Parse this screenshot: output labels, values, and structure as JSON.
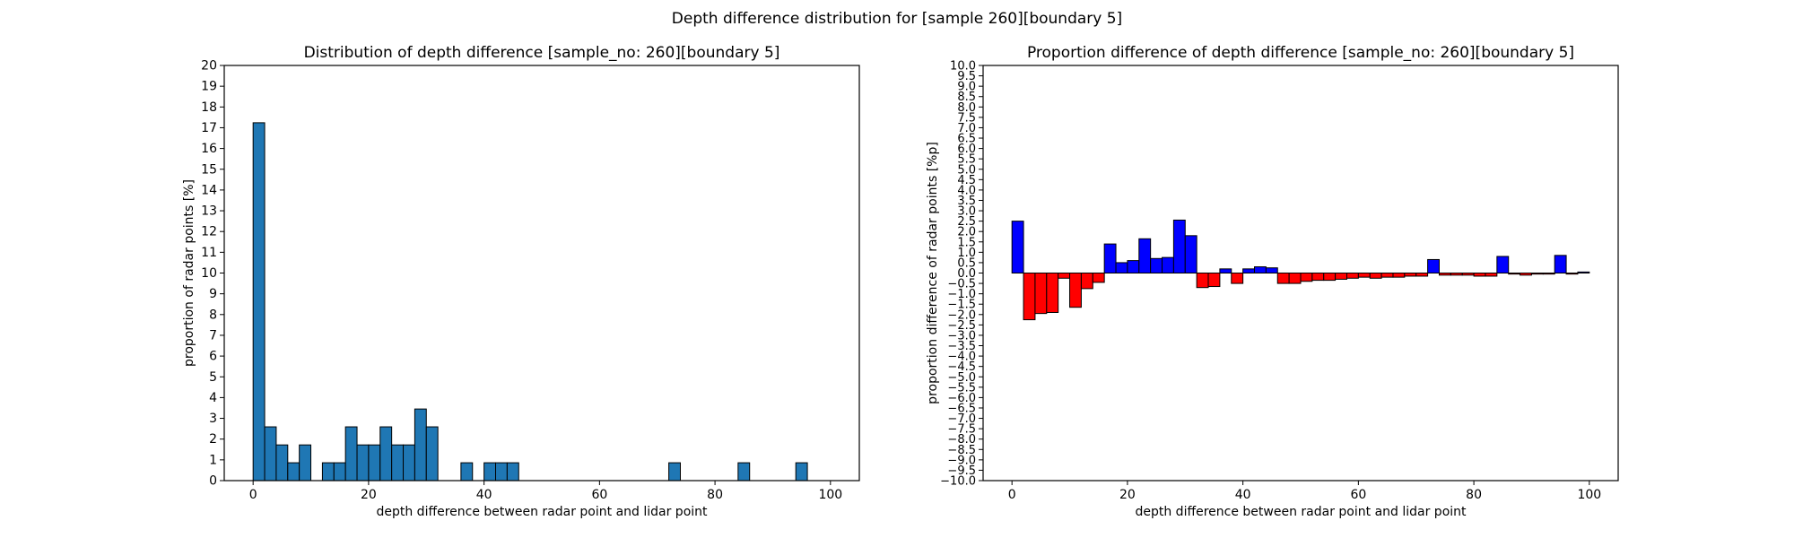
{
  "figure": {
    "title": "Depth difference distribution for [sample 260][boundary 5]"
  },
  "chart_data": [
    {
      "type": "bar",
      "title": "Distribution of depth difference [sample_no: 260][boundary 5]",
      "xlabel": "depth difference between radar point and lidar point",
      "ylabel": "proportion of radar points [%]",
      "xlim": [
        -5,
        105
      ],
      "ylim": [
        0,
        20
      ],
      "xticks": [
        0,
        20,
        40,
        60,
        80,
        100
      ],
      "yticks": [
        0,
        1,
        2,
        3,
        4,
        5,
        6,
        7,
        8,
        9,
        10,
        11,
        12,
        13,
        14,
        15,
        16,
        17,
        18,
        19,
        20
      ],
      "bin_width": 2,
      "bar_color": "#1f77b4",
      "edge_color": "#000000",
      "x": [
        0,
        2,
        4,
        6,
        8,
        12,
        14,
        16,
        18,
        20,
        22,
        24,
        26,
        28,
        30,
        36,
        40,
        42,
        44,
        72,
        84,
        94
      ],
      "values": [
        17.24,
        2.59,
        1.72,
        0.86,
        1.72,
        0.86,
        0.86,
        2.59,
        1.72,
        1.72,
        2.59,
        1.72,
        1.72,
        3.45,
        2.59,
        0.86,
        0.86,
        0.86,
        0.86,
        0.86,
        0.86,
        0.86
      ]
    },
    {
      "type": "bar",
      "title": "Proportion difference of depth difference [sample_no: 260][boundary 5]",
      "xlabel": "depth difference between radar point and lidar point",
      "ylabel": "proportion difference of radar points [%p]",
      "xlim": [
        -5,
        105
      ],
      "ylim": [
        -10,
        10
      ],
      "xticks": [
        0,
        20,
        40,
        60,
        80,
        100
      ],
      "ytick_step": 0.5,
      "bin_width": 2,
      "positive_color": "#0000ff",
      "negative_color": "#ff0000",
      "edge_color": "#000000",
      "x": [
        0,
        2,
        4,
        6,
        8,
        10,
        12,
        14,
        16,
        18,
        20,
        22,
        24,
        26,
        28,
        30,
        32,
        34,
        36,
        38,
        40,
        42,
        44,
        46,
        48,
        50,
        52,
        54,
        56,
        58,
        60,
        62,
        64,
        66,
        68,
        70,
        72,
        74,
        76,
        78,
        80,
        82,
        84,
        86,
        88,
        90,
        92,
        94,
        96,
        98
      ],
      "values": [
        2.5,
        -2.25,
        -1.95,
        -1.9,
        -0.25,
        -1.65,
        -0.75,
        -0.45,
        1.4,
        0.5,
        0.6,
        1.65,
        0.7,
        0.75,
        2.55,
        1.8,
        -0.7,
        -0.65,
        0.2,
        -0.5,
        0.2,
        0.3,
        0.25,
        -0.5,
        -0.5,
        -0.4,
        -0.35,
        -0.35,
        -0.3,
        -0.25,
        -0.2,
        -0.25,
        -0.2,
        -0.2,
        -0.15,
        -0.15,
        0.65,
        -0.1,
        -0.1,
        -0.1,
        -0.15,
        -0.15,
        0.8,
        -0.05,
        -0.1,
        -0.05,
        -0.05,
        0.85,
        -0.05,
        0.05
      ]
    }
  ]
}
